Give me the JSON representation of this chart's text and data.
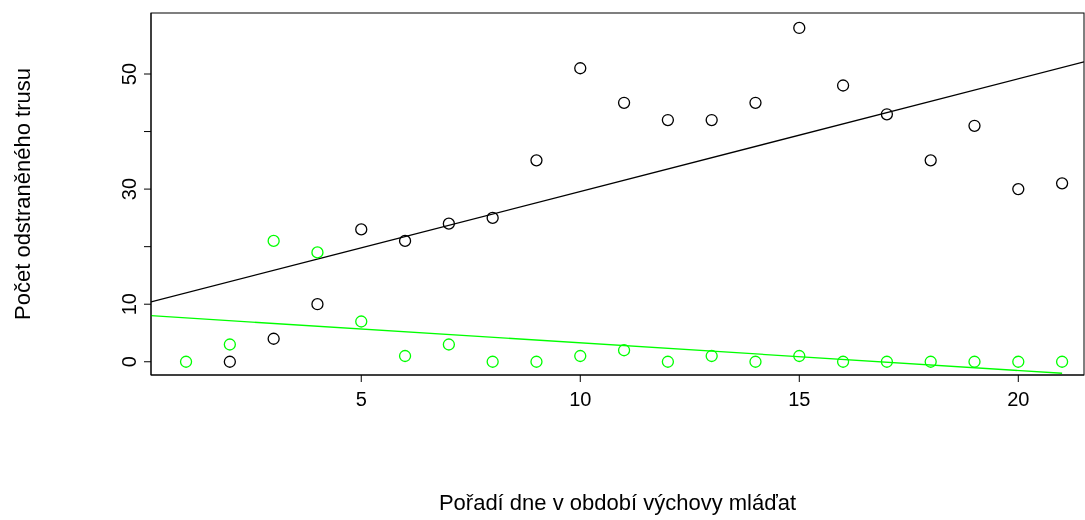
{
  "chart_data": {
    "type": "scatter",
    "xlabel": "Pořadí dne v období výchovy mláďat",
    "ylabel": "Počet odstraněného trusu",
    "xlim": [
      0.2,
      21.5
    ],
    "ylim": [
      -2.3,
      60.6
    ],
    "xticks": [
      5,
      10,
      15,
      20
    ],
    "yticks": [
      0,
      10,
      {
        "value": 20,
        "label": null
      },
      30,
      {
        "value": 40,
        "label": null
      },
      50
    ],
    "grid": false,
    "legend": false,
    "series": [
      {
        "marker": "circle",
        "color": "#000000",
        "x": [
          2,
          3,
          4,
          5,
          6,
          7,
          8,
          9,
          10,
          11,
          12,
          13,
          14,
          15,
          16,
          17,
          18,
          19,
          20,
          21
        ],
        "values": [
          0,
          4,
          10,
          23,
          21,
          24,
          25,
          35,
          51,
          45,
          42,
          42,
          45,
          58,
          48,
          43,
          35,
          41,
          30,
          31
        ]
      },
      {
        "marker": "circle",
        "color": "#00ff00",
        "x": [
          1,
          2,
          3,
          4,
          5,
          6,
          7,
          8,
          9,
          10,
          11,
          12,
          13,
          14,
          15,
          16,
          17,
          18,
          19,
          20,
          21
        ],
        "values": [
          0,
          3,
          21,
          19,
          7,
          1,
          3,
          0,
          0,
          1,
          2,
          0,
          1,
          0,
          1,
          0,
          0,
          0,
          0,
          0,
          0
        ]
      },
      {
        "type": "line",
        "marker": "none",
        "color": "#000000",
        "x": [
          0.2,
          21.5
        ],
        "values": [
          10.4,
          52.1
        ]
      },
      {
        "type": "line",
        "marker": "none",
        "color": "#00ff00",
        "x": [
          0.2,
          21.0
        ],
        "values": [
          8.0,
          -2.0
        ]
      }
    ]
  }
}
